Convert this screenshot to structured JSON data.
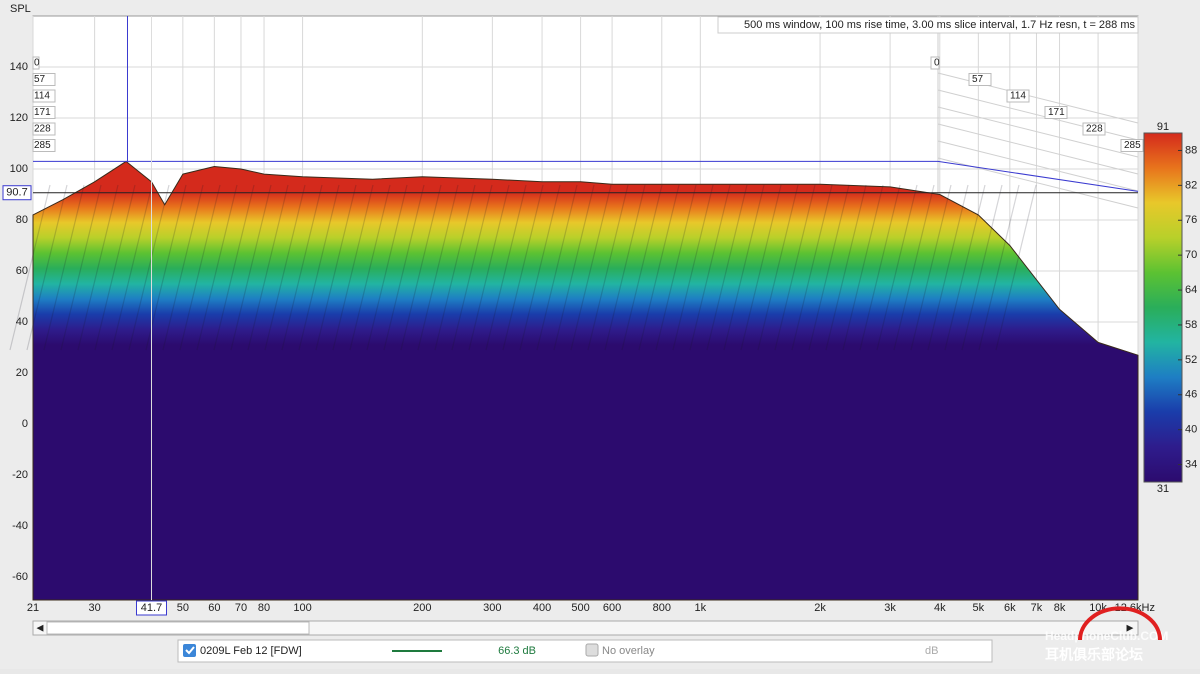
{
  "chart_data": {
    "type": "waterfall",
    "y_label": "SPL",
    "info": "500 ms window, 100 ms rise time, 3.00 ms slice interval, 1.7 Hz resn, t = 288 ms",
    "log_x": true,
    "xlim": [
      21,
      12600
    ],
    "xticks": [
      21,
      30,
      50,
      60,
      70,
      80,
      100,
      200,
      300,
      400,
      500,
      600,
      800,
      {
        "value": 1000,
        "label": "1k"
      },
      {
        "value": 2000,
        "label": "2k"
      },
      {
        "value": 3000,
        "label": "3k"
      },
      {
        "value": 4000,
        "label": "4k"
      },
      {
        "value": 5000,
        "label": "5k"
      },
      {
        "value": 6000,
        "label": "6k"
      },
      {
        "value": 7000,
        "label": "7k"
      },
      {
        "value": 8000,
        "label": "8k"
      },
      {
        "value": 10000,
        "label": "10k"
      },
      {
        "value": 12600,
        "label": "12.6kHz"
      }
    ],
    "ylim": [
      -69,
      160
    ],
    "yticks": [
      -60,
      -40,
      -20,
      0,
      20,
      40,
      60,
      80,
      100,
      120,
      140
    ],
    "grid": true,
    "cursor": {
      "x": {
        "value": 41.7,
        "label": "41.7"
      },
      "y": {
        "value": 90.7,
        "label": "90.7"
      }
    },
    "slices": [
      0,
      57,
      114,
      171,
      228,
      285
    ],
    "surface": {
      "x": [
        21,
        25,
        30,
        36,
        41.7,
        45,
        50,
        60,
        70,
        80,
        100,
        150,
        200,
        300,
        400,
        500,
        600,
        800,
        1000,
        2000,
        3000,
        4000,
        5000,
        6000,
        8000,
        10000,
        12600
      ],
      "values": [
        82,
        88,
        95,
        103,
        95,
        86,
        98,
        101,
        100,
        98,
        97,
        96,
        97,
        96,
        95,
        95,
        94,
        94,
        94,
        94,
        93,
        90,
        82,
        70,
        45,
        32,
        27
      ]
    },
    "colorbar": {
      "range": [
        31,
        91
      ],
      "ticks": [
        34,
        40,
        46,
        52,
        58,
        64,
        70,
        76,
        82,
        88
      ],
      "colormap": [
        "#d42a1c",
        "#e8741c",
        "#e8c82a",
        "#b8d02a",
        "#5cc232",
        "#2aae5a",
        "#22b4a2",
        "#1e7ec4",
        "#1a3caa",
        "#2e1c8c",
        "#2c0b6e"
      ]
    }
  },
  "legend": {
    "name": "0209L Feb 12 [FDW]",
    "value": "66.3 dB",
    "overlay": "No overlay",
    "unit": "dB",
    "color": "#1e7a3e"
  },
  "watermark": {
    "site": "HeadphoneClub.COM",
    "forum": "耳机俱乐部论坛"
  }
}
